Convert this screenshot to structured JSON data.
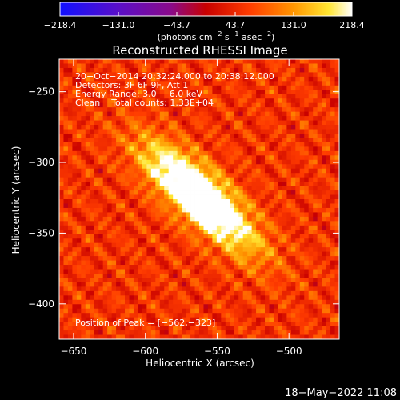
{
  "chart_data": {
    "type": "heatmap",
    "title": "Reconstructed RHESSI Image",
    "xlabel": "Heliocentric X (arcsec)",
    "ylabel": "Heliocentric Y (arcsec)",
    "xlim": [
      -660,
      -465
    ],
    "ylim": [
      -425,
      -227
    ],
    "x_ticks": [
      -650,
      -600,
      -550,
      -500
    ],
    "y_ticks": [
      -250,
      -300,
      -350,
      -400
    ],
    "x_tick_labels": [
      "−650",
      "−600",
      "−550",
      "−500"
    ],
    "y_tick_labels": [
      "−250",
      "−300",
      "−350",
      "−400"
    ],
    "colorbar": {
      "range": [
        -218.4,
        218.4
      ],
      "ticks": [
        -218.4,
        -131.0,
        -43.7,
        43.7,
        131.0,
        218.4
      ],
      "tick_labels": [
        "−218.4",
        "−131.0",
        "−43.7",
        "43.7",
        "131.0",
        "218.4"
      ],
      "colormap": "rhessi (blue → purple → red → orange → yellow → white)",
      "unit_main": "(photons cm",
      "unit_exp1": "−2",
      "unit_mid1": " s",
      "unit_exp2": "−1",
      "unit_mid2": " asec",
      "unit_exp3": "−2",
      "unit_end": ")"
    },
    "annotations": [
      "20−Oct−2014 20:32:24.000 to 20:38:12.000",
      "Detectors: 3F 6F 9F, Att 1",
      "Energy Range: 3.0 − 6.0 keV",
      "Clean    Total counts: 1.33E+04"
    ],
    "peak_label": "Position of Peak = [−562,−323]",
    "peak": [
      -562,
      -323
    ],
    "sources": [
      {
        "x": -562,
        "y": -323,
        "value": 218.4
      },
      {
        "x": -585,
        "y": -305,
        "value": 150
      },
      {
        "x": -545,
        "y": -340,
        "value": 130
      },
      {
        "x": -530,
        "y": -355,
        "value": 90
      }
    ],
    "background_level": 55
  },
  "footer": {
    "timestamp": "18−May−2022 11:08"
  }
}
